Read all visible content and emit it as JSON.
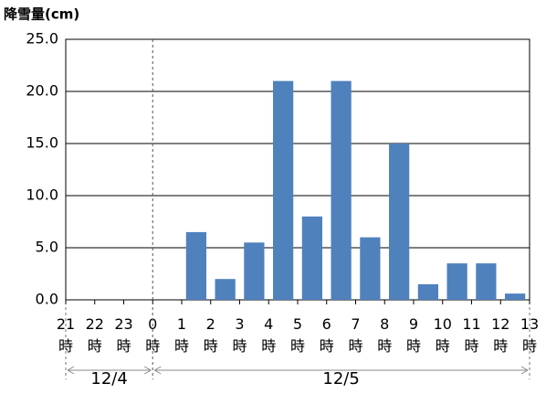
{
  "chart_data": {
    "type": "bar",
    "y_label": "降雪量(cm)",
    "bin_labels": [
      "21時",
      "22時",
      "23時",
      "0時",
      "1時",
      "2時",
      "3時",
      "4時",
      "5時",
      "6時",
      "7時",
      "8時",
      "9時",
      "10時",
      "11時",
      "12時",
      "13時"
    ],
    "values": [
      0,
      0,
      0,
      0,
      6.5,
      2,
      5.5,
      21,
      8,
      21,
      6,
      15,
      1.5,
      3.5,
      3.5,
      0.6
    ],
    "color": "#4f81bd",
    "ylim": [
      0,
      25
    ],
    "yticks": [
      {
        "value": 0,
        "label": "0.0"
      },
      {
        "value": 5,
        "label": "5.0"
      },
      {
        "value": 10,
        "label": "10.0"
      },
      {
        "value": 15,
        "label": "15.0"
      },
      {
        "value": 20,
        "label": "20.0"
      },
      {
        "value": 25,
        "label": "25.0"
      }
    ],
    "grid": true,
    "date_labels": [
      "12/4",
      "12/5"
    ]
  }
}
